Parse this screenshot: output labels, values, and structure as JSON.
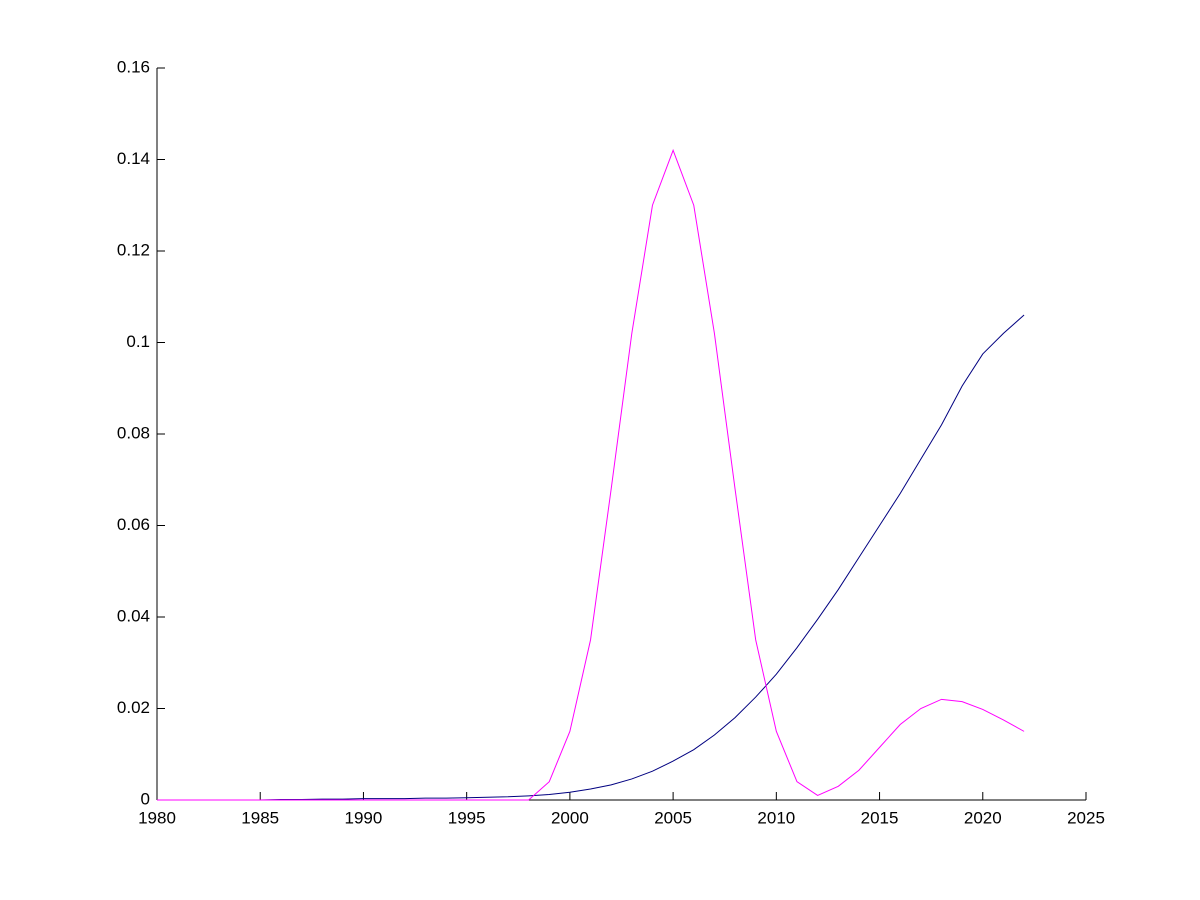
{
  "chart_data": {
    "type": "line",
    "x": [
      1980,
      1981,
      1982,
      1983,
      1984,
      1985,
      1986,
      1987,
      1988,
      1989,
      1990,
      1991,
      1992,
      1993,
      1994,
      1995,
      1996,
      1997,
      1998,
      1999,
      2000,
      2001,
      2002,
      2003,
      2004,
      2005,
      2006,
      2007,
      2008,
      2009,
      2010,
      2011,
      2012,
      2013,
      2014,
      2015,
      2016,
      2017,
      2018,
      2019,
      2020,
      2021,
      2022
    ],
    "series": [
      {
        "color": "#000080",
        "values": [
          0,
          0,
          0,
          0,
          0,
          0,
          0.0001,
          0.0001,
          0.0002,
          0.0002,
          0.0003,
          0.0003,
          0.0003,
          0.0004,
          0.0004,
          0.0005,
          0.0006,
          0.0007,
          0.0009,
          0.0012,
          0.0017,
          0.0024,
          0.0033,
          0.0046,
          0.0063,
          0.0085,
          0.011,
          0.0142,
          0.018,
          0.0225,
          0.0275,
          0.0333,
          0.0395,
          0.046,
          0.053,
          0.06,
          0.067,
          0.0745,
          0.082,
          0.0905,
          0.0975,
          0.102,
          0.106
        ]
      },
      {
        "color": "#ff00ff",
        "values": [
          0,
          0,
          0,
          0,
          0,
          0,
          0,
          0,
          0,
          0,
          0,
          0,
          0,
          0,
          0,
          0,
          0,
          0,
          0,
          0.004,
          0.015,
          0.035,
          0.068,
          0.102,
          0.13,
          0.142,
          0.13,
          0.102,
          0.068,
          0.035,
          0.015,
          0.004,
          0.001,
          0.003,
          0.0065,
          0.0115,
          0.0165,
          0.02,
          0.022,
          0.0215,
          0.0198,
          0.0175,
          0.015
        ]
      }
    ],
    "xlim": [
      1980,
      2025
    ],
    "ylim": [
      0,
      0.16
    ],
    "xticks": [
      1980,
      1985,
      1990,
      1995,
      2000,
      2005,
      2010,
      2015,
      2020,
      2025
    ],
    "yticks": [
      0,
      0.02,
      0.04,
      0.06,
      0.08,
      0.1,
      0.12,
      0.14,
      0.16
    ]
  }
}
